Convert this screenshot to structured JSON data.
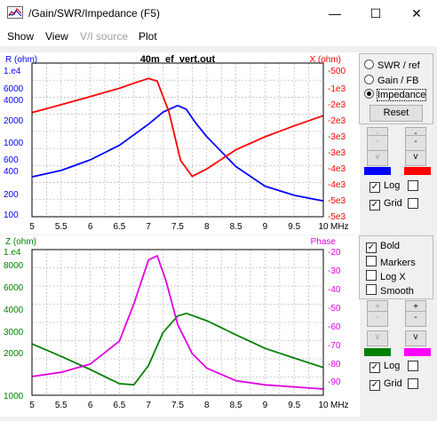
{
  "window": {
    "title": "/Gain/SWR/Impedance (F5)",
    "minimize_glyph": "—",
    "maximize_glyph": "☐",
    "close_glyph": "✕"
  },
  "menu": [
    "Show",
    "View",
    "V/I source",
    "Plot"
  ],
  "top_chart": {
    "title": "40m_ef_vert.out",
    "left_axis_label": "R (ohm)",
    "right_axis_label": "X (ohm)",
    "left_color": "#0000ff",
    "right_color": "#ff0000",
    "x_unit": "MHz",
    "x_ticks": [
      "5",
      "5.5",
      "6",
      "6.5",
      "7",
      "7.5",
      "8",
      "8.5",
      "9",
      "9.5",
      "10"
    ],
    "left_ticks": [
      "1.e4",
      "6000",
      "4000",
      "2000",
      "1000",
      "600",
      "400",
      "200",
      "100"
    ],
    "right_ticks": [
      "-500",
      "-1e3",
      "-2e3",
      "-2e3",
      "-3e3",
      "-3e3",
      "-4e3",
      "-4e3",
      "-5e3",
      "-5e3"
    ]
  },
  "bottom_chart": {
    "left_axis_label": "Z (ohm)",
    "right_axis_label": "Phase",
    "left_color": "#008000",
    "right_color": "#e000e0",
    "x_unit": "MHz",
    "x_ticks": [
      "5",
      "5.5",
      "6",
      "6.5",
      "7",
      "7.5",
      "8",
      "8.5",
      "9",
      "9.5",
      "10"
    ],
    "left_ticks": [
      "1.e4",
      "8000",
      "6000",
      "4000",
      "3000",
      "2000",
      "1000"
    ],
    "right_ticks": [
      "-20",
      "-30",
      "-40",
      "-50",
      "-60",
      "-70",
      "-80",
      "-90"
    ]
  },
  "chart_data": [
    {
      "type": "line",
      "title": "40m_ef_vert.out",
      "xlabel": "MHz",
      "ylabel": "R (ohm)",
      "y2label": "X (ohm)",
      "xlim": [
        5,
        10
      ],
      "ylim": [
        100,
        10000
      ],
      "y_scale": "log",
      "y2lim": [
        -5000,
        -500
      ],
      "grid": true,
      "series": [
        {
          "name": "R (ohm)",
          "axis": "left",
          "color": "#0000ff",
          "x": [
            5,
            5.5,
            6,
            6.5,
            7,
            7.25,
            7.5,
            7.65,
            7.8,
            8,
            8.5,
            9,
            9.5,
            10
          ],
          "values": [
            330,
            400,
            550,
            850,
            1600,
            2300,
            2800,
            2500,
            1700,
            1100,
            450,
            250,
            190,
            160
          ]
        },
        {
          "name": "X (ohm)",
          "axis": "right",
          "color": "#ff0000",
          "x": [
            5,
            5.5,
            6,
            6.5,
            6.75,
            7,
            7.15,
            7.35,
            7.55,
            7.75,
            8,
            8.5,
            9,
            9.5,
            10
          ],
          "values": [
            -1950,
            -1720,
            -1480,
            -1240,
            -1090,
            -950,
            -1030,
            -1930,
            -3350,
            -3820,
            -3600,
            -3040,
            -2660,
            -2340,
            -2040
          ]
        }
      ]
    },
    {
      "type": "line",
      "xlabel": "MHz",
      "ylabel": "Z (ohm)",
      "y2label": "Phase",
      "xlim": [
        5,
        10
      ],
      "ylim": [
        1000,
        10000
      ],
      "y_scale": "log",
      "y2lim": [
        -90,
        -20
      ],
      "grid": true,
      "series": [
        {
          "name": "Z (ohm)",
          "axis": "left",
          "color": "#008000",
          "x": [
            5,
            5.5,
            6,
            6.5,
            6.75,
            7,
            7.25,
            7.5,
            7.65,
            8,
            8.5,
            9,
            9.5,
            10
          ],
          "values": [
            2250,
            1850,
            1500,
            1200,
            1180,
            1600,
            2700,
            3500,
            3650,
            3250,
            2600,
            2100,
            1800,
            1550
          ]
        },
        {
          "name": "Phase",
          "axis": "right",
          "color": "#e000e0",
          "x": [
            5,
            5.5,
            6,
            6.5,
            6.75,
            7,
            7.15,
            7.3,
            7.5,
            7.75,
            8,
            8.5,
            9,
            9.5,
            10
          ],
          "values": [
            -81,
            -79,
            -75,
            -64,
            -46,
            -25,
            -23,
            -35,
            -56,
            -70,
            -77,
            -83,
            -85,
            -86,
            -87
          ]
        }
      ]
    }
  ],
  "panel": {
    "radio_swr": "SWR / ref",
    "radio_gain": "Gain / FB",
    "radio_impedance": "Impedance",
    "reset": "Reset",
    "up_minus": "-",
    "up_plus": "+",
    "v_label": "v",
    "top_log": "Log",
    "top_grid": "Grid",
    "bold": "Bold",
    "markers": "Markers",
    "logx": "Log X",
    "smooth": "Smooth",
    "bottom_log": "Log",
    "bottom_grid": "Grid",
    "check_glyph": "✓"
  }
}
